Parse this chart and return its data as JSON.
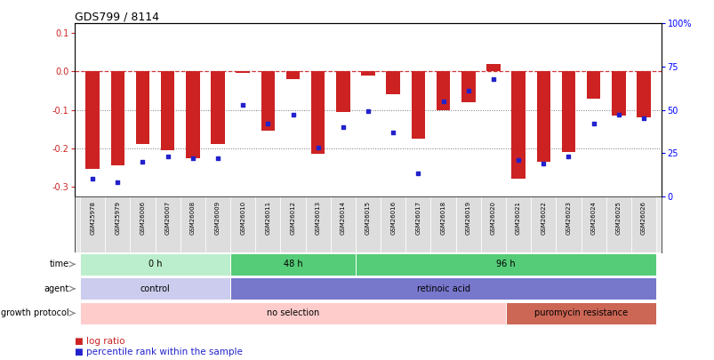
{
  "title": "GDS799 / 8114",
  "samples": [
    "GSM25978",
    "GSM25979",
    "GSM26006",
    "GSM26007",
    "GSM26008",
    "GSM26009",
    "GSM26010",
    "GSM26011",
    "GSM26012",
    "GSM26013",
    "GSM26014",
    "GSM26015",
    "GSM26016",
    "GSM26017",
    "GSM26018",
    "GSM26019",
    "GSM26020",
    "GSM26021",
    "GSM26022",
    "GSM26023",
    "GSM26024",
    "GSM26025",
    "GSM26026"
  ],
  "log_ratio": [
    -0.255,
    -0.245,
    -0.19,
    -0.205,
    -0.225,
    -0.19,
    -0.005,
    -0.155,
    -0.02,
    -0.215,
    -0.105,
    -0.01,
    -0.06,
    -0.175,
    -0.1,
    -0.08,
    0.02,
    -0.28,
    -0.235,
    -0.21,
    -0.07,
    -0.115,
    -0.12
  ],
  "percentile": [
    10,
    8,
    20,
    23,
    22,
    22,
    53,
    42,
    47,
    28,
    40,
    49,
    37,
    13,
    55,
    61,
    68,
    21,
    19,
    23,
    42,
    47,
    45
  ],
  "bar_color": "#cc2222",
  "dot_color": "#2222cc",
  "ylim_left": [
    -0.325,
    0.125
  ],
  "ylim_right": [
    0,
    100
  ],
  "yticks_left": [
    -0.3,
    -0.2,
    -0.1,
    0.0,
    0.1
  ],
  "yticks_right": [
    0,
    25,
    50,
    75,
    100
  ],
  "ytick_labels_right": [
    "0",
    "25",
    "50",
    "75",
    "100%"
  ],
  "bar_width": 0.55,
  "time_groups": [
    {
      "label": "0 h",
      "start": 0,
      "end": 6,
      "color": "#bbeecc"
    },
    {
      "label": "48 h",
      "start": 6,
      "end": 11,
      "color": "#55cc77"
    },
    {
      "label": "96 h",
      "start": 11,
      "end": 23,
      "color": "#55cc77"
    }
  ],
  "agent_groups": [
    {
      "label": "control",
      "start": 0,
      "end": 6,
      "color": "#ccccee"
    },
    {
      "label": "retinoic acid",
      "start": 6,
      "end": 23,
      "color": "#7777cc"
    }
  ],
  "growth_groups": [
    {
      "label": "no selection",
      "start": 0,
      "end": 17,
      "color": "#ffcccc"
    },
    {
      "label": "puromycin resistance",
      "start": 17,
      "end": 23,
      "color": "#cc6655"
    }
  ],
  "legend_bar_label": "log ratio",
  "legend_dot_label": "percentile rank within the sample"
}
